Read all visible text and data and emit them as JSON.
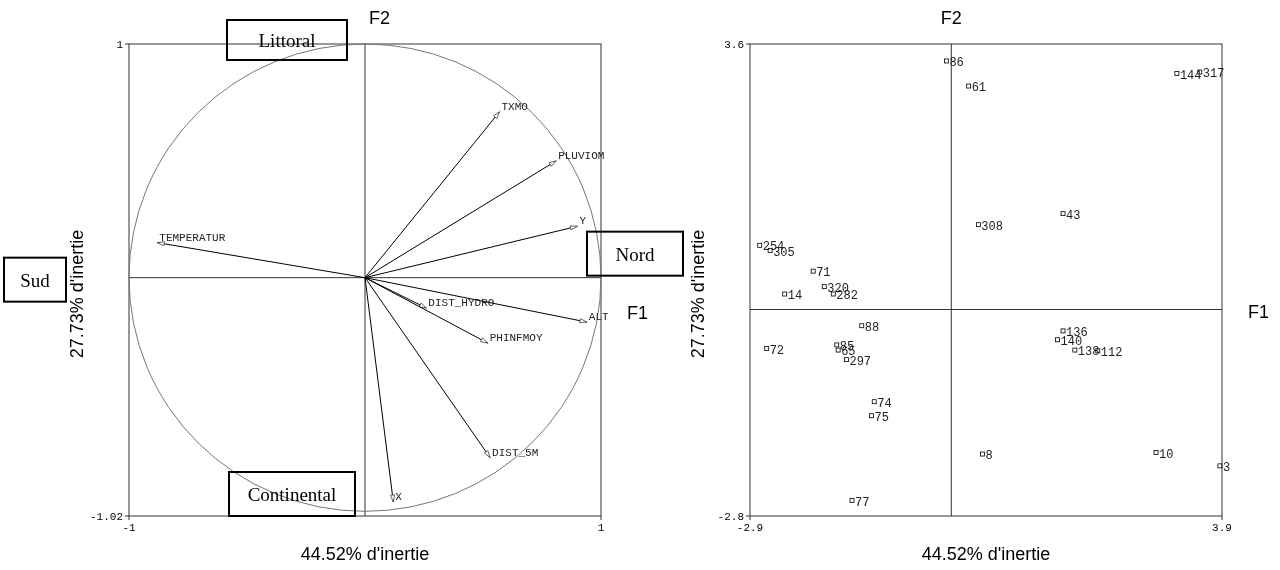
{
  "chart_data": [
    {
      "type": "line",
      "xlabel": "44.52% d'inertie",
      "ylabel": "27.73% d'inertie",
      "xlim": [
        -1,
        1
      ],
      "ylim": [
        -1.02,
        1
      ],
      "xticks": [
        -1,
        1
      ],
      "yticks": [
        -1.02,
        1
      ],
      "marker": "none",
      "line_style": "solid",
      "annotations": [
        "F1",
        "F2",
        "Littoral",
        "Nord",
        "Sud",
        "Continental"
      ],
      "series": [
        {
          "name": "TXMO",
          "color": "#000000",
          "x": [
            0,
            0.57
          ],
          "values": [
            0,
            0.71
          ]
        },
        {
          "name": "PLUVIOM",
          "color": "#000000",
          "x": [
            0,
            0.81
          ],
          "values": [
            0,
            0.5
          ]
        },
        {
          "name": "Y",
          "color": "#000000",
          "x": [
            0,
            0.9
          ],
          "values": [
            0,
            0.22
          ]
        },
        {
          "name": "TEMPERATUR",
          "color": "#000000",
          "x": [
            0,
            -0.88
          ],
          "values": [
            0,
            0.15
          ]
        },
        {
          "name": "DIST_HYDRO",
          "color": "#000000",
          "x": [
            0,
            0.26
          ],
          "values": [
            0,
            -0.13
          ]
        },
        {
          "name": "ALT",
          "color": "#000000",
          "x": [
            0,
            0.94
          ],
          "values": [
            0,
            -0.19
          ]
        },
        {
          "name": "PHINFMOY",
          "color": "#000000",
          "x": [
            0,
            0.52
          ],
          "values": [
            0,
            -0.28
          ]
        },
        {
          "name": "DIST_5M",
          "color": "#000000",
          "x": [
            0,
            0.53
          ],
          "values": [
            0,
            -0.77
          ]
        },
        {
          "name": "X",
          "color": "#000000",
          "x": [
            0,
            0.12
          ],
          "values": [
            0,
            -0.96
          ]
        }
      ]
    },
    {
      "type": "scatter",
      "xlabel": "44.52% d'inertie",
      "ylabel": "27.73% d'inertie",
      "xlim": [
        -2.9,
        3.9
      ],
      "ylim": [
        -2.8,
        3.6
      ],
      "xticks": [
        -2.9,
        3.9
      ],
      "yticks": [
        -2.8,
        3.6
      ],
      "marker": "square",
      "x": [
        -0.07,
        0.25,
        0.39,
        1.61,
        -2.76,
        -2.61,
        -1.99,
        -1.83,
        -1.7,
        -2.4,
        -1.29,
        -2.66,
        -1.65,
        -1.63,
        -1.51,
        -1.11,
        -1.15,
        -1.43,
        0.45,
        1.61,
        1.53,
        1.78,
        2.11,
        2.95,
        3.87,
        3.25,
        3.58
      ],
      "series": [
        {
          "color": "#000000",
          "values": [
            3.37,
            3.03,
            1.15,
            1.3,
            0.87,
            0.8,
            0.52,
            0.31,
            0.21,
            0.21,
            -0.22,
            -0.53,
            -0.48,
            -0.55,
            -0.68,
            -1.25,
            -1.44,
            -2.59,
            -1.96,
            -0.29,
            -0.41,
            -0.55,
            -0.56,
            -1.94,
            -2.12,
            3.2,
            3.22
          ]
        }
      ],
      "annotations": [
        "F1",
        "F2",
        {
          "text": "86",
          "x": -0.07,
          "y": 3.37
        },
        {
          "text": "61",
          "x": 0.25,
          "y": 3.03
        },
        {
          "text": "308",
          "x": 0.39,
          "y": 1.15
        },
        {
          "text": "43",
          "x": 1.61,
          "y": 1.3
        },
        {
          "text": "254",
          "x": -2.76,
          "y": 0.87
        },
        {
          "text": "305",
          "x": -2.61,
          "y": 0.8
        },
        {
          "text": "71",
          "x": -1.99,
          "y": 0.52
        },
        {
          "text": "320",
          "x": -1.83,
          "y": 0.31
        },
        {
          "text": "282",
          "x": -1.7,
          "y": 0.21
        },
        {
          "text": "14",
          "x": -2.4,
          "y": 0.21
        },
        {
          "text": "88",
          "x": -1.29,
          "y": -0.22
        },
        {
          "text": "72",
          "x": -2.66,
          "y": -0.53
        },
        {
          "text": "85",
          "x": -1.65,
          "y": -0.48
        },
        {
          "text": "65",
          "x": -1.63,
          "y": -0.55
        },
        {
          "text": "297",
          "x": -1.51,
          "y": -0.68
        },
        {
          "text": "74",
          "x": -1.11,
          "y": -1.25
        },
        {
          "text": "75",
          "x": -1.15,
          "y": -1.44
        },
        {
          "text": "77",
          "x": -1.43,
          "y": -2.59
        },
        {
          "text": "8",
          "x": 0.45,
          "y": -1.96
        },
        {
          "text": "136",
          "x": 1.61,
          "y": -0.29
        },
        {
          "text": "140",
          "x": 1.53,
          "y": -0.41
        },
        {
          "text": "138",
          "x": 1.78,
          "y": -0.55
        },
        {
          "text": "112",
          "x": 2.11,
          "y": -0.56
        },
        {
          "text": "10",
          "x": 2.95,
          "y": -1.94
        },
        {
          "text": "3",
          "x": 3.87,
          "y": -2.12
        },
        {
          "text": "144",
          "x": 3.25,
          "y": 3.2
        },
        {
          "text": "317",
          "x": 3.58,
          "y": 3.22
        }
      ]
    }
  ]
}
